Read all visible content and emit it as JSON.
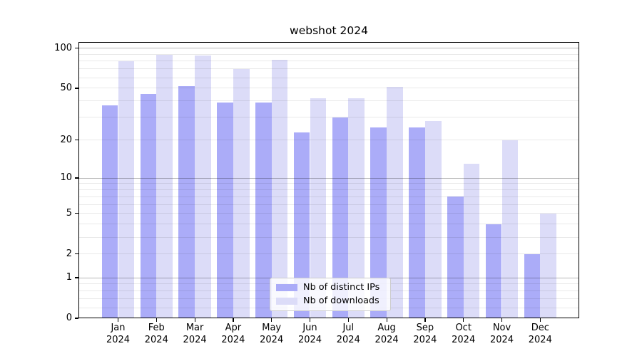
{
  "chart_data": {
    "type": "bar",
    "title": "webshot 2024",
    "categories": [
      "Jan",
      "Feb",
      "Mar",
      "Apr",
      "May",
      "Jun",
      "Jul",
      "Aug",
      "Sep",
      "Oct",
      "Nov",
      "Dec"
    ],
    "xtick_year": "2024",
    "series": [
      {
        "name": "Nb of distinct IPs",
        "color": "#abacf8",
        "values": [
          37,
          45,
          52,
          39,
          39,
          23,
          30,
          25,
          25,
          7,
          4,
          2
        ]
      },
      {
        "name": "Nb of downloads",
        "color": "#dcdcf8",
        "values": [
          80,
          89,
          88,
          70,
          82,
          42,
          42,
          51,
          28,
          13,
          20,
          5
        ]
      }
    ],
    "yscale": "log1p",
    "ytick_labels": [
      "100",
      "50",
      "20",
      "10",
      "5",
      "2",
      "1",
      "0"
    ],
    "ylim": [
      0,
      112
    ],
    "grid": "horizontal",
    "legend_position": "lower center",
    "background_color": "#ffffff"
  }
}
